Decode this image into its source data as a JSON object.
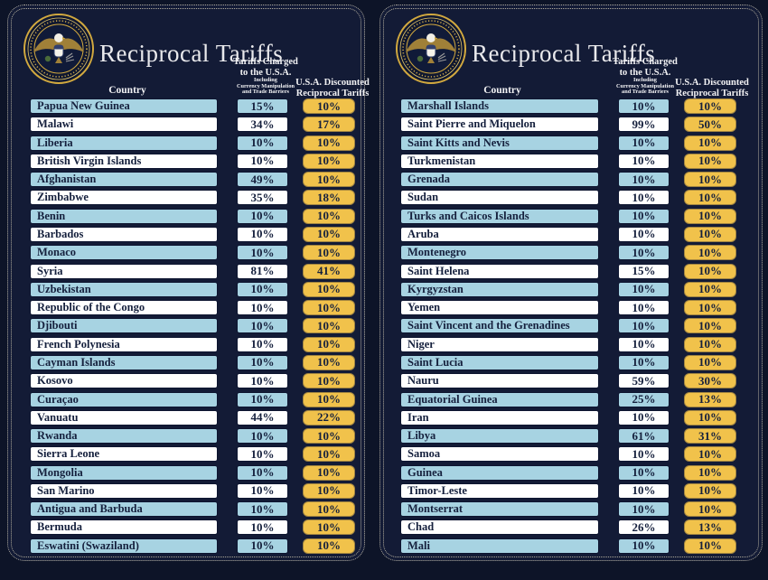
{
  "header": {
    "title": "Reciprocal Tariffs",
    "country": "Country",
    "charged_line1": "Tariffs Charged",
    "charged_line2": "to the U.S.A.",
    "charged_sub1": "Including",
    "charged_sub2": "Currency Manipulation",
    "charged_sub3": "and Trade Barriers",
    "discounted_line1": "U.S.A. Discounted",
    "discounted_line2": "Reciprocal Tariffs"
  },
  "colors": {
    "background": "#0d1428",
    "panel_background": "#131b36",
    "row_blue": "#a7d3e2",
    "row_white": "#ffffff",
    "tariff_yellow": "#f1c24b",
    "cell_text": "#15203d",
    "header_text": "#f2f2f4",
    "seal_gold": "#d2a93f",
    "dotted_border": "#dbd3b8"
  },
  "icons": {
    "seal": "presidential-seal-icon"
  },
  "chart_data": {
    "type": "table",
    "title": "Reciprocal Tariffs",
    "columns": [
      "Country",
      "Tariffs Charged to the U.S.A. Including Currency Manipulation and Trade Barriers",
      "U.S.A. Discounted Reciprocal Tariffs"
    ],
    "panels": [
      [
        [
          "Papua New Guinea",
          "15%",
          "10%"
        ],
        [
          "Malawi",
          "34%",
          "17%"
        ],
        [
          "Liberia",
          "10%",
          "10%"
        ],
        [
          "British Virgin Islands",
          "10%",
          "10%"
        ],
        [
          "Afghanistan",
          "49%",
          "10%"
        ],
        [
          "Zimbabwe",
          "35%",
          "18%"
        ],
        [
          "Benin",
          "10%",
          "10%"
        ],
        [
          "Barbados",
          "10%",
          "10%"
        ],
        [
          "Monaco",
          "10%",
          "10%"
        ],
        [
          "Syria",
          "81%",
          "41%"
        ],
        [
          "Uzbekistan",
          "10%",
          "10%"
        ],
        [
          "Republic of the Congo",
          "10%",
          "10%"
        ],
        [
          "Djibouti",
          "10%",
          "10%"
        ],
        [
          "French Polynesia",
          "10%",
          "10%"
        ],
        [
          "Cayman Islands",
          "10%",
          "10%"
        ],
        [
          "Kosovo",
          "10%",
          "10%"
        ],
        [
          "Curaçao",
          "10%",
          "10%"
        ],
        [
          "Vanuatu",
          "44%",
          "22%"
        ],
        [
          "Rwanda",
          "10%",
          "10%"
        ],
        [
          "Sierra Leone",
          "10%",
          "10%"
        ],
        [
          "Mongolia",
          "10%",
          "10%"
        ],
        [
          "San Marino",
          "10%",
          "10%"
        ],
        [
          "Antigua and Barbuda",
          "10%",
          "10%"
        ],
        [
          "Bermuda",
          "10%",
          "10%"
        ],
        [
          "Eswatini (Swaziland)",
          "10%",
          "10%"
        ]
      ],
      [
        [
          "Marshall Islands",
          "10%",
          "10%"
        ],
        [
          "Saint Pierre and Miquelon",
          "99%",
          "50%"
        ],
        [
          "Saint Kitts and Nevis",
          "10%",
          "10%"
        ],
        [
          "Turkmenistan",
          "10%",
          "10%"
        ],
        [
          "Grenada",
          "10%",
          "10%"
        ],
        [
          "Sudan",
          "10%",
          "10%"
        ],
        [
          "Turks and Caicos Islands",
          "10%",
          "10%"
        ],
        [
          "Aruba",
          "10%",
          "10%"
        ],
        [
          "Montenegro",
          "10%",
          "10%"
        ],
        [
          "Saint Helena",
          "15%",
          "10%"
        ],
        [
          "Kyrgyzstan",
          "10%",
          "10%"
        ],
        [
          "Yemen",
          "10%",
          "10%"
        ],
        [
          "Saint Vincent and the Grenadines",
          "10%",
          "10%"
        ],
        [
          "Niger",
          "10%",
          "10%"
        ],
        [
          "Saint Lucia",
          "10%",
          "10%"
        ],
        [
          "Nauru",
          "59%",
          "30%"
        ],
        [
          "Equatorial Guinea",
          "25%",
          "13%"
        ],
        [
          "Iran",
          "10%",
          "10%"
        ],
        [
          "Libya",
          "61%",
          "31%"
        ],
        [
          "Samoa",
          "10%",
          "10%"
        ],
        [
          "Guinea",
          "10%",
          "10%"
        ],
        [
          "Timor-Leste",
          "10%",
          "10%"
        ],
        [
          "Montserrat",
          "10%",
          "10%"
        ],
        [
          "Chad",
          "26%",
          "13%"
        ],
        [
          "Mali",
          "10%",
          "10%"
        ]
      ]
    ]
  }
}
